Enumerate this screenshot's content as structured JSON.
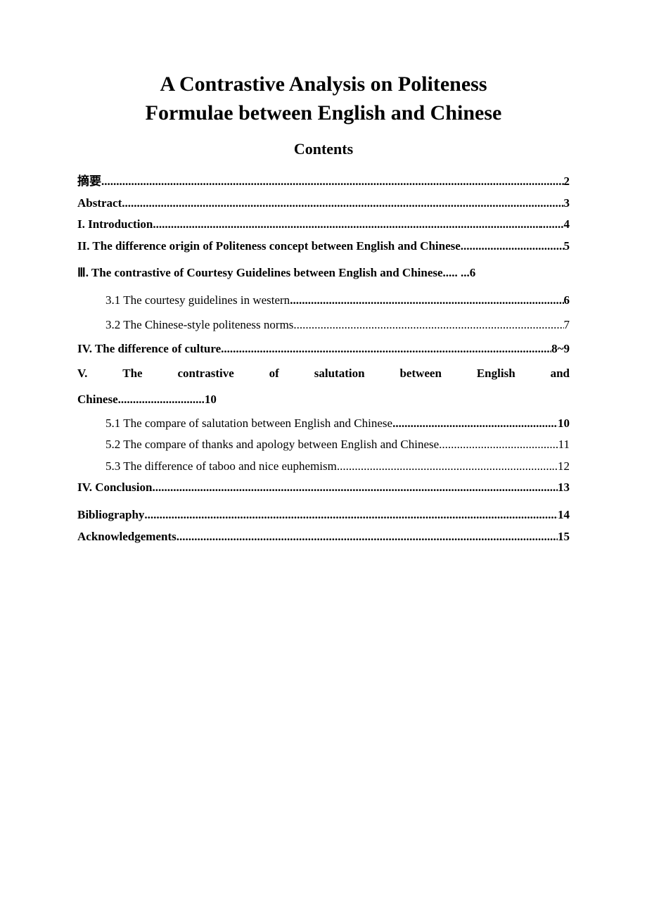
{
  "title_line1": "A Contrastive Analysis on Politeness",
  "title_line2": "Formulae between English and Chinese",
  "subtitle": "Contents",
  "toc": {
    "abstract_cn": {
      "label": "摘要",
      "page": "2"
    },
    "abstract_en": {
      "label": "Abstract",
      "page": "3"
    },
    "intro": {
      "label": "I. Introduction",
      "dots_suffix": " ........",
      "page": "4"
    },
    "section2": {
      "label": "II.  The difference origin of Politeness concept between English and Chinese",
      "page": "5"
    },
    "section3": {
      "label": "Ⅲ. The contrastive of Courtesy Guidelines between English and Chinese..... ...",
      "page": "6"
    },
    "sub31": {
      "label": "3.1 The courtesy guidelines in western",
      "page": "6"
    },
    "sub32": {
      "label": "3.2 The Chinese-style politeness norms",
      "page": "7"
    },
    "section4": {
      "label": "IV. The difference of culture",
      "page": "8~9"
    },
    "section5_words": [
      "V.",
      "The",
      "contrastive",
      "of",
      "salutation",
      "between",
      "English",
      "and"
    ],
    "section5_line2": "Chinese. ",
    "section5_page": "10",
    "sub51": {
      "label": "5.1 The compare of salutation between English and Chinese",
      "page": "10"
    },
    "sub52": {
      "label": "5.2 The compare of thanks and apology between English and Chinese. ",
      "page": "11"
    },
    "sub53": {
      "label": "5.3 The difference of taboo and nice euphemism",
      "dots_suffix": " ..",
      "page": "12"
    },
    "conclusion": {
      "label": "IV. Conclusion",
      "page": "13"
    },
    "bibliography": {
      "label": "Bibliography",
      "page": "14"
    },
    "acknowledgements": {
      "label": "Acknowledgements",
      "page": "15"
    }
  }
}
